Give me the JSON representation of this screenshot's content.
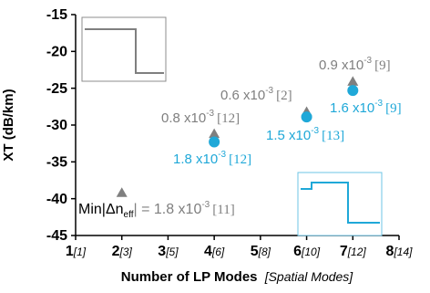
{
  "chart_data": {
    "type": "scatter",
    "title": "",
    "xlabel": "Number of LP Modes",
    "xlabel_sub": "[Spatial Modes]",
    "ylabel": "XT (dB/km)",
    "xlim": [
      1,
      8
    ],
    "ylim": [
      -45,
      -15
    ],
    "grid": false,
    "x_ticks": [
      {
        "value": 1,
        "main": "1",
        "sub": "[1]"
      },
      {
        "value": 2,
        "main": "2",
        "sub": "[3]"
      },
      {
        "value": 3,
        "main": "3",
        "sub": "[5]"
      },
      {
        "value": 4,
        "main": "4",
        "sub": "[6]"
      },
      {
        "value": 5,
        "main": "5",
        "sub": "[8]"
      },
      {
        "value": 6,
        "main": "6",
        "sub": "[10]"
      },
      {
        "value": 7,
        "main": "7",
        "sub": "[12]"
      },
      {
        "value": 8,
        "main": "8",
        "sub": "[14]"
      }
    ],
    "y_ticks": [
      {
        "value": -15,
        "label": "-15"
      },
      {
        "value": -20,
        "label": "-20"
      },
      {
        "value": -25,
        "label": "-25"
      },
      {
        "value": -30,
        "label": "-30"
      },
      {
        "value": -35,
        "label": "-35"
      },
      {
        "value": -40,
        "label": "-40"
      },
      {
        "value": -45,
        "label": "-45"
      }
    ],
    "series": [
      {
        "marker": "triangle",
        "color": "#7f7f7f",
        "points": [
          {
            "x": 2,
            "y": -39.2
          },
          {
            "x": 4,
            "y": -31.2
          },
          {
            "x": 6,
            "y": -28.2
          },
          {
            "x": 7,
            "y": -24.1
          }
        ]
      },
      {
        "marker": "circle",
        "color": "#1fa8d8",
        "points": [
          {
            "x": 4,
            "y": -32.3
          },
          {
            "x": 6,
            "y": -28.9
          },
          {
            "x": 7,
            "y": -25.3
          }
        ]
      }
    ],
    "annotations": {
      "min_label_prefix": "Min|Δn",
      "min_label_sub": "eff",
      "min_label_eq": "| = 1.8 x10",
      "min_label_exp": "-3",
      "min_label_ref": "[11]",
      "grey_labels": [
        {
          "base": "0.8 x10",
          "exp": "-3",
          "ref": "[12]"
        },
        {
          "base": "0.6 x10",
          "exp": "-3",
          "ref": "[2]"
        },
        {
          "base": "0.9 x10",
          "exp": "-3",
          "ref": "[9]"
        }
      ],
      "blue_labels": [
        {
          "base": "1.8 x10",
          "exp": "-3",
          "ref": "[12]"
        },
        {
          "base": "1.5 x10",
          "exp": "-3",
          "ref": "[13]"
        },
        {
          "base": "1.6 x10",
          "exp": "-3",
          "ref": "[9]"
        }
      ]
    }
  }
}
